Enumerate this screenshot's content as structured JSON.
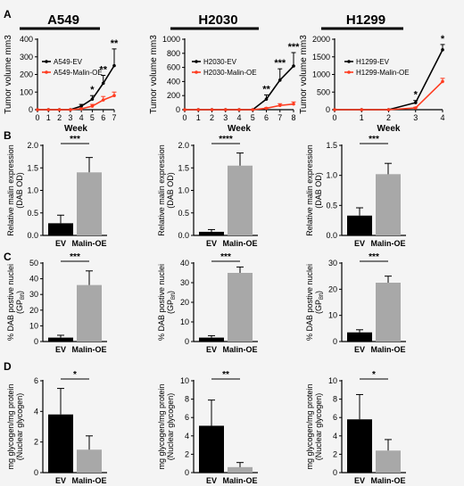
{
  "panel_letters": [
    "A",
    "B",
    "C",
    "D"
  ],
  "chart_data": [
    {
      "type": "line",
      "panel": "A",
      "header": "A549",
      "x": [
        0,
        1,
        2,
        3,
        4,
        5,
        6,
        7
      ],
      "xlabel": "Week",
      "ylabel": "Tumor volume mm3",
      "ylim": [
        0,
        400
      ],
      "yticks": [
        0,
        100,
        200,
        300,
        400
      ],
      "series": [
        {
          "name": "A549-EV",
          "values": [
            0,
            0,
            0,
            0,
            20,
            60,
            150,
            250
          ],
          "errors": [
            0,
            0,
            0,
            0,
            10,
            20,
            45,
            95
          ],
          "color": "#000000"
        },
        {
          "name": "A549-Malin-OE",
          "values": [
            0,
            0,
            0,
            0,
            5,
            20,
            55,
            80
          ],
          "errors": [
            0,
            0,
            0,
            0,
            3,
            10,
            20,
            20
          ],
          "color": "#ff3b1f"
        }
      ],
      "annotations": [
        {
          "x": 5,
          "text": "*"
        },
        {
          "x": 6,
          "text": "**"
        },
        {
          "x": 7,
          "text": "**"
        }
      ]
    },
    {
      "type": "line",
      "panel": "A",
      "header": "H2030",
      "x": [
        0,
        1,
        2,
        3,
        4,
        5,
        6,
        7,
        8
      ],
      "xlabel": "Week",
      "ylabel": "Tumor volume mm3",
      "ylim": [
        0,
        1000
      ],
      "yticks": [
        0,
        200,
        400,
        600,
        800,
        1000
      ],
      "series": [
        {
          "name": "H2030-EV",
          "values": [
            0,
            0,
            0,
            0,
            0,
            0,
            150,
            420,
            620
          ],
          "errors": [
            0,
            0,
            0,
            0,
            0,
            0,
            60,
            160,
            190
          ],
          "color": "#000000"
        },
        {
          "name": "H2030-Malin-OE",
          "values": [
            0,
            0,
            0,
            0,
            0,
            0,
            20,
            60,
            80
          ],
          "errors": [
            0,
            0,
            0,
            0,
            0,
            0,
            8,
            25,
            30
          ],
          "color": "#ff3b1f"
        }
      ],
      "annotations": [
        {
          "x": 6,
          "text": "**"
        },
        {
          "x": 7,
          "text": "***"
        },
        {
          "x": 8,
          "text": "***"
        }
      ]
    },
    {
      "type": "line",
      "panel": "A",
      "header": "H1299",
      "x": [
        0,
        1,
        2,
        3,
        4
      ],
      "xlabel": "Week",
      "ylabel": "Tumor volume mm3",
      "ylim": [
        0,
        2000
      ],
      "yticks": [
        0,
        500,
        1000,
        1500,
        2000
      ],
      "series": [
        {
          "name": "H1299-EV",
          "values": [
            0,
            0,
            0,
            200,
            1700
          ],
          "errors": [
            0,
            0,
            0,
            60,
            150
          ],
          "color": "#000000"
        },
        {
          "name": "H1299-Malin-OE",
          "values": [
            0,
            0,
            0,
            50,
            800
          ],
          "errors": [
            0,
            0,
            0,
            20,
            90
          ],
          "color": "#ff3b1f"
        }
      ],
      "annotations": [
        {
          "x": 3,
          "text": "*"
        },
        {
          "x": 4,
          "text": "*"
        }
      ]
    },
    {
      "type": "bar",
      "panel": "B",
      "categories": [
        "EV",
        "Malin-OE"
      ],
      "ylabel": "Relative malin expression",
      "ylabel2": "(DAB OD)",
      "values": [
        0.27,
        1.4
      ],
      "errors": [
        0.18,
        0.33
      ],
      "colors": [
        "#000000",
        "#a8a8a8"
      ],
      "ylim": [
        0,
        2.0
      ],
      "yticks": [
        "0.0",
        "0.5",
        "1.0",
        "1.5",
        "2.0"
      ],
      "sig": "***"
    },
    {
      "type": "bar",
      "panel": "B",
      "categories": [
        "EV",
        "Malin-OE"
      ],
      "ylabel": "Relative malin expression",
      "ylabel2": "(DAB OD)",
      "values": [
        0.08,
        1.55
      ],
      "errors": [
        0.05,
        0.28
      ],
      "colors": [
        "#000000",
        "#a8a8a8"
      ],
      "ylim": [
        0,
        2.0
      ],
      "yticks": [
        "0.0",
        "0.5",
        "1.0",
        "1.5",
        "2.0"
      ],
      "sig": "****"
    },
    {
      "type": "bar",
      "panel": "B",
      "categories": [
        "EV",
        "Malin-OE"
      ],
      "ylabel": "Relative malin expression",
      "ylabel2": "(DAB OD)",
      "values": [
        0.33,
        1.02
      ],
      "errors": [
        0.13,
        0.18
      ],
      "colors": [
        "#000000",
        "#a8a8a8"
      ],
      "ylim": [
        0,
        1.5
      ],
      "yticks": [
        "0.0",
        "0.5",
        "1.0",
        "1.5"
      ],
      "sig": "***"
    },
    {
      "type": "bar",
      "panel": "C",
      "categories": [
        "EV",
        "Malin-OE"
      ],
      "ylabel": "% DAB postive nuclei",
      "ylabel2": "(GP",
      "values": [
        2.5,
        36
      ],
      "errors": [
        1.5,
        9
      ],
      "colors": [
        "#000000",
        "#a8a8a8"
      ],
      "ylim": [
        0,
        50
      ],
      "yticks": [
        "0",
        "10",
        "20",
        "30",
        "40",
        "50"
      ],
      "sig": "***"
    },
    {
      "type": "bar",
      "panel": "C",
      "categories": [
        "EV",
        "Malin-OE"
      ],
      "ylabel": "% DAB postive nuclei",
      "ylabel2": "(GP",
      "values": [
        2,
        35
      ],
      "errors": [
        1,
        3
      ],
      "colors": [
        "#000000",
        "#a8a8a8"
      ],
      "ylim": [
        0,
        40
      ],
      "yticks": [
        "0",
        "10",
        "20",
        "30",
        "40"
      ],
      "sig": "***"
    },
    {
      "type": "bar",
      "panel": "C",
      "categories": [
        "EV",
        "Malin-OE"
      ],
      "ylabel": "% DAB postive nuclei",
      "ylabel2": "(GP",
      "values": [
        3.5,
        22.5
      ],
      "errors": [
        1.0,
        2.5
      ],
      "colors": [
        "#000000",
        "#a8a8a8"
      ],
      "ylim": [
        0,
        30
      ],
      "yticks": [
        "0",
        "10",
        "20",
        "30"
      ],
      "sig": "***"
    },
    {
      "type": "bar",
      "panel": "D",
      "categories": [
        "EV",
        "Malin-OE"
      ],
      "ylabel": "mg glycogen/mg protein",
      "ylabel2": "(Nuclear glycogen)",
      "values": [
        3.8,
        1.5
      ],
      "errors": [
        1.7,
        0.9
      ],
      "colors": [
        "#000000",
        "#a8a8a8"
      ],
      "ylim": [
        0,
        6
      ],
      "yticks": [
        "0",
        "2",
        "4",
        "6"
      ],
      "sig": "*"
    },
    {
      "type": "bar",
      "panel": "D",
      "categories": [
        "EV",
        "Malin-OE"
      ],
      "ylabel": "mg glycogen/mg protein",
      "ylabel2": "(Nuclear glycogen)",
      "values": [
        5.1,
        0.6
      ],
      "errors": [
        2.8,
        0.5
      ],
      "colors": [
        "#000000",
        "#a8a8a8"
      ],
      "ylim": [
        0,
        10
      ],
      "yticks": [
        "0",
        "2",
        "4",
        "6",
        "8",
        "10"
      ],
      "sig": "**"
    },
    {
      "type": "bar",
      "panel": "D",
      "categories": [
        "EV",
        "Malin-OE"
      ],
      "ylabel": "mg glycogen/mg protein",
      "ylabel2": "(Nuclear glycogen)",
      "values": [
        5.8,
        2.4
      ],
      "errors": [
        2.7,
        1.2
      ],
      "colors": [
        "#000000",
        "#a8a8a8"
      ],
      "ylim": [
        0,
        10
      ],
      "yticks": [
        "0",
        "2",
        "4",
        "6",
        "8",
        "10"
      ],
      "sig": "*"
    }
  ]
}
